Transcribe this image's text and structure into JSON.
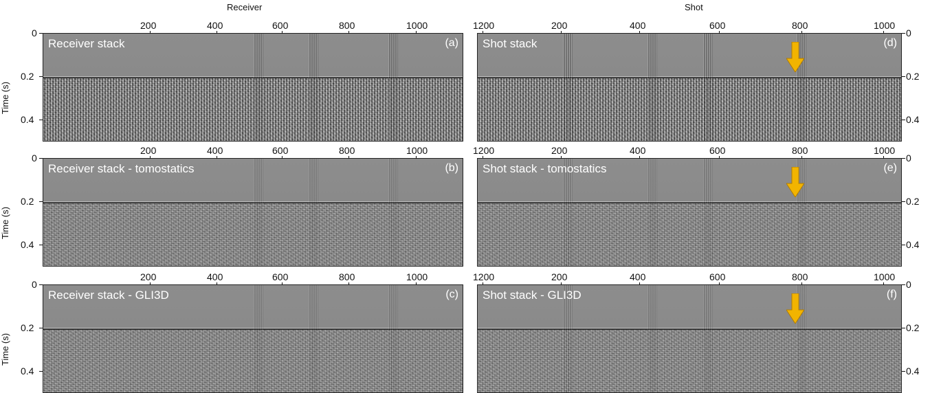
{
  "figure": {
    "left_axis_title": "Receiver",
    "right_axis_title": "Shot",
    "y_axis_label": "Time (s)",
    "highlight_color": "#f2b400",
    "y_ticks": [
      "0",
      "0.2",
      "0.4"
    ],
    "left_x_ticks": [
      "200",
      "400",
      "600",
      "800",
      "1000",
      "1200"
    ],
    "right_x_ticks": [
      "200",
      "400",
      "600",
      "800",
      "1000"
    ],
    "panels": [
      {
        "id": "a",
        "title": "Receiver stack",
        "letter": "(a)",
        "side": "left",
        "row": 0,
        "arrow": false
      },
      {
        "id": "b",
        "title": "Receiver stack - tomostatics",
        "letter": "(b)",
        "side": "left",
        "row": 1,
        "arrow": false
      },
      {
        "id": "c",
        "title": "Receiver stack - GLI3D",
        "letter": "(c)",
        "side": "left",
        "row": 2,
        "arrow": false
      },
      {
        "id": "d",
        "title": "Shot stack",
        "letter": "(d)",
        "side": "right",
        "row": 0,
        "arrow": true
      },
      {
        "id": "e",
        "title": "Shot stack - tomostatics",
        "letter": "(e)",
        "side": "right",
        "row": 1,
        "arrow": true
      },
      {
        "id": "f",
        "title": "Shot stack - GLI3D",
        "letter": "(f)",
        "side": "right",
        "row": 2,
        "arrow": true
      }
    ]
  }
}
